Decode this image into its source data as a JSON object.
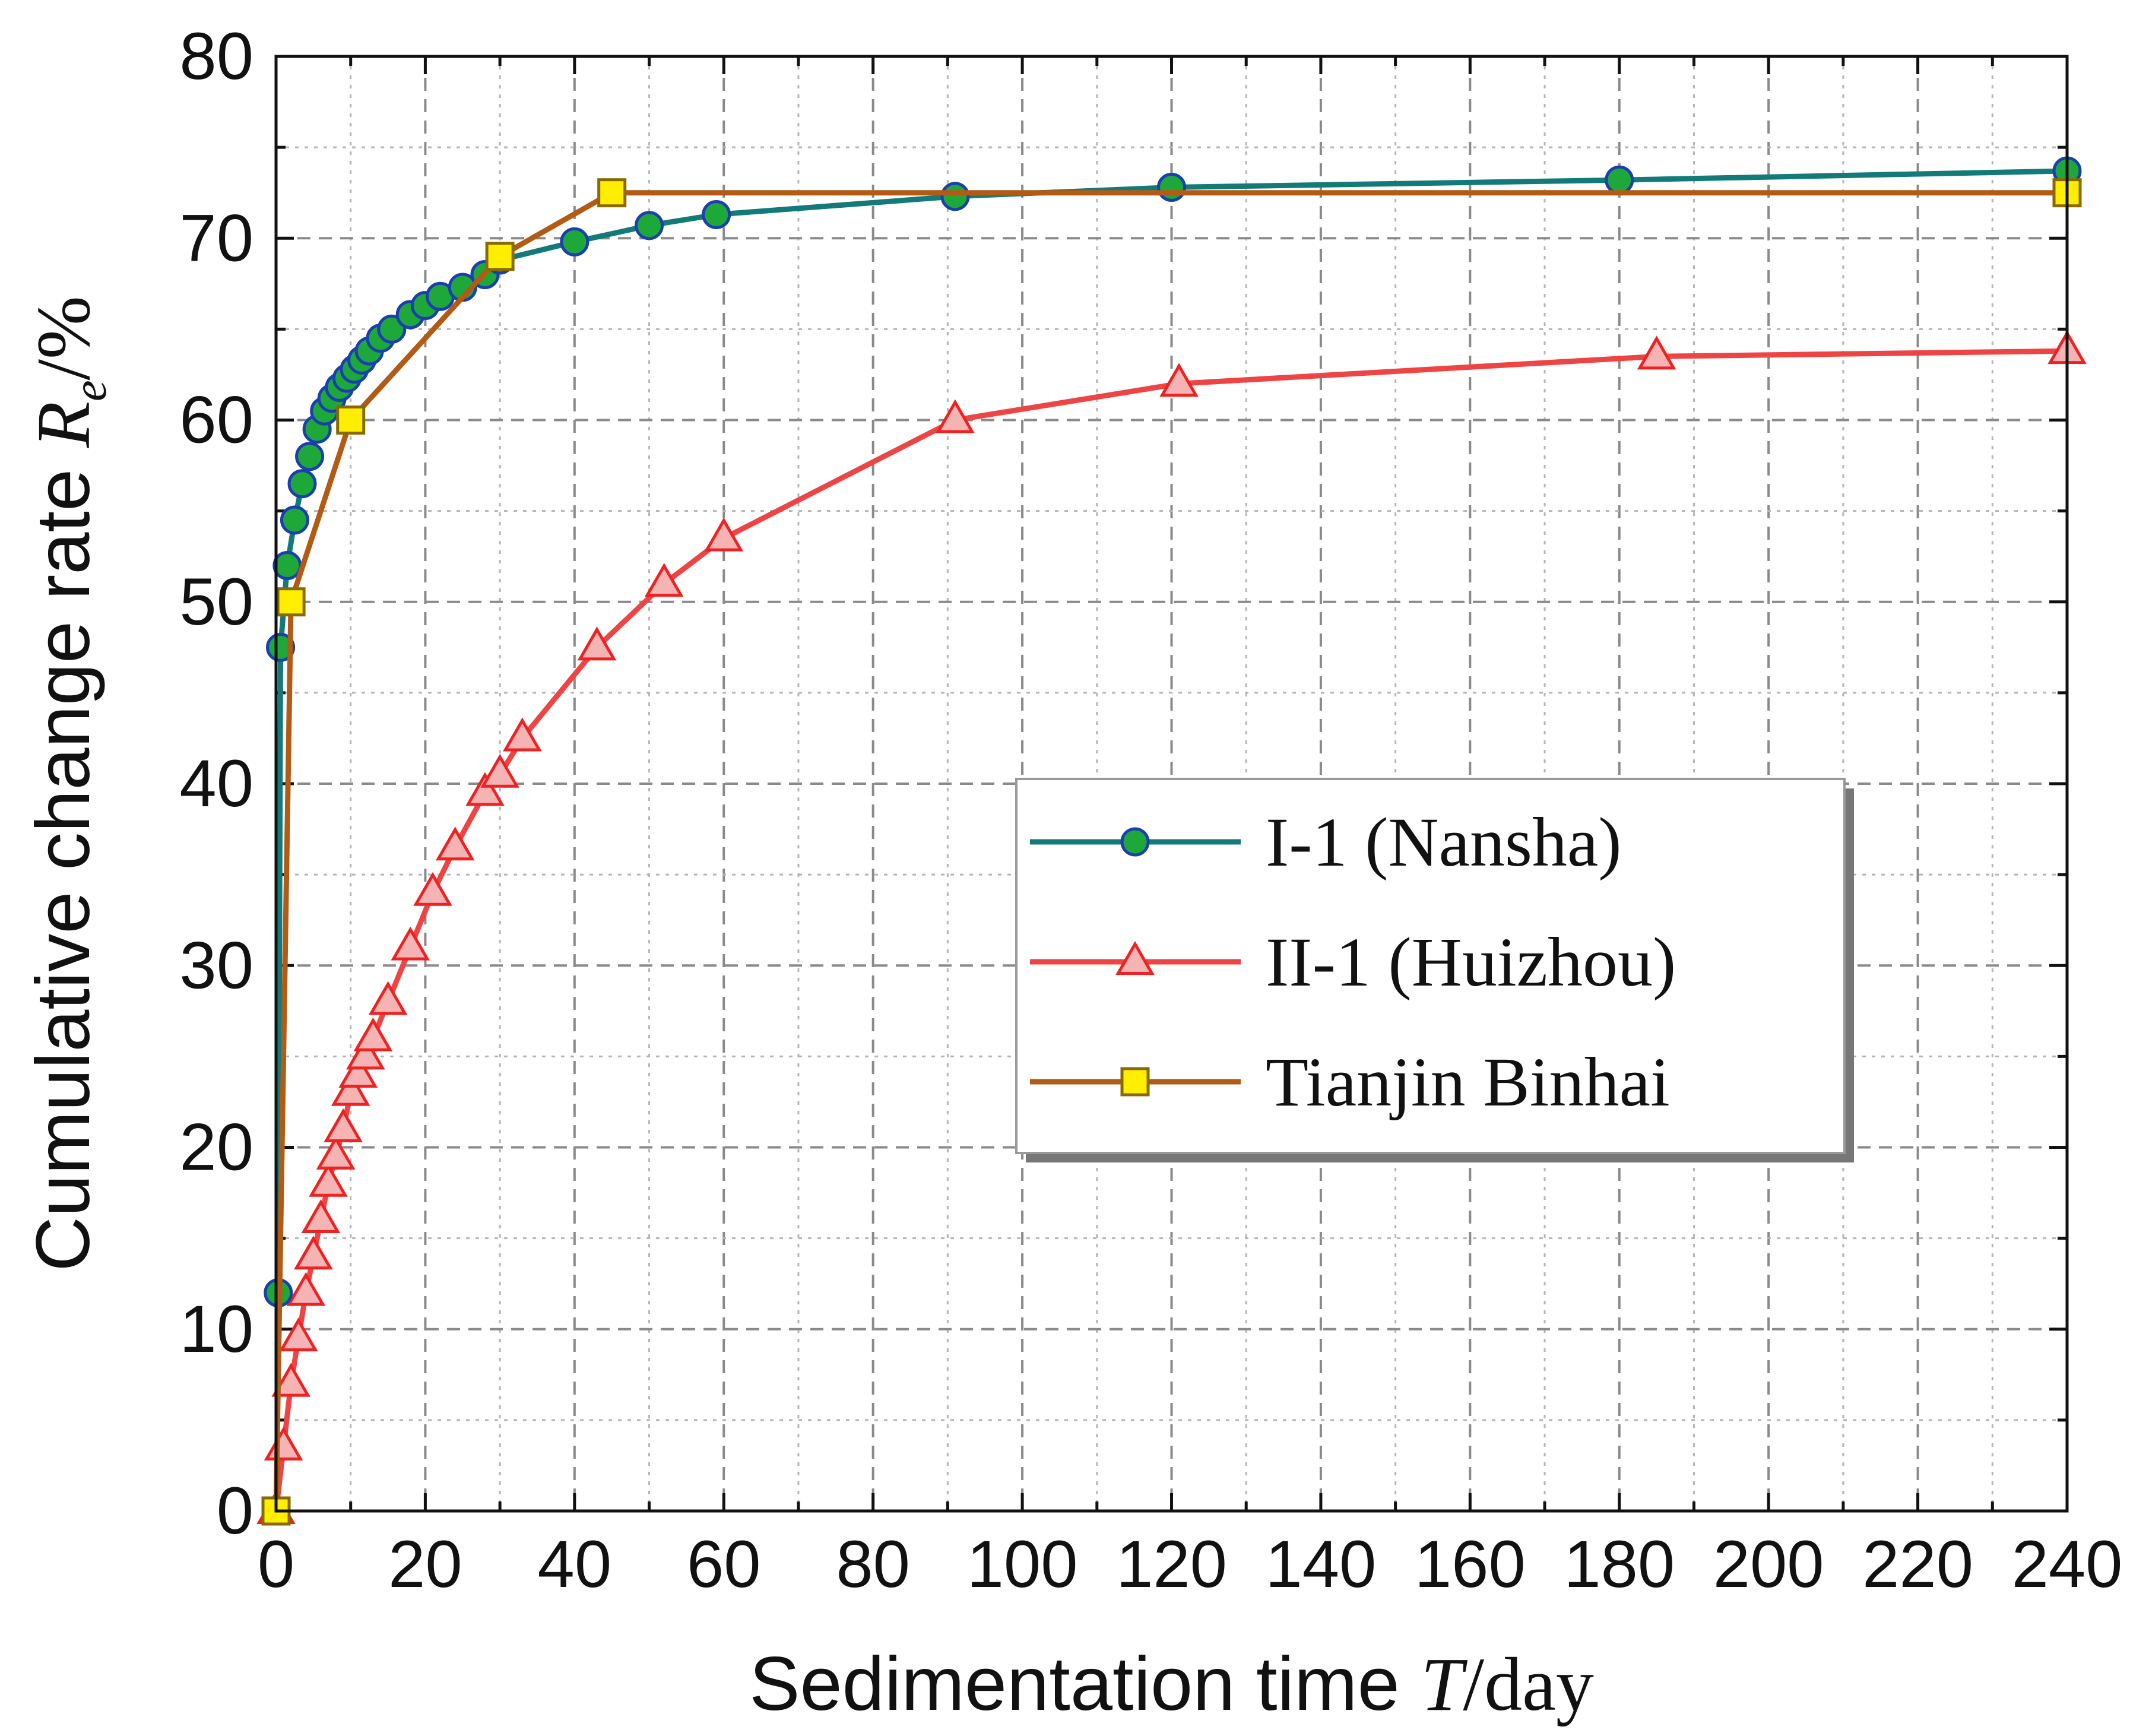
{
  "chart_data": {
    "type": "line",
    "xlabel": "Sedimentation time T/day",
    "ylabel": "Cumulative change rate Re/%",
    "xlabel_parts": {
      "text": "Sedimentation time ",
      "var": "T",
      "unit": "/day"
    },
    "ylabel_parts": {
      "text": "Cumulative change rate ",
      "var": "R",
      "sub": "e",
      "unit": "/%"
    },
    "xlim": [
      0,
      240
    ],
    "ylim": [
      0,
      80
    ],
    "xticks": [
      "0",
      "20",
      "40",
      "60",
      "80",
      "100",
      "120",
      "140",
      "160",
      "180",
      "200",
      "220",
      "240"
    ],
    "yticks": [
      "0",
      "10",
      "20",
      "30",
      "40",
      "50",
      "60",
      "70",
      "80"
    ],
    "grid": true,
    "legend_position": "center-right",
    "series": [
      {
        "name": "I-1 (Nansha)",
        "color": "#137a7a",
        "marker": "circle",
        "marker_fill": "#1fa83a",
        "marker_stroke": "#1a3fb0",
        "x": [
          0.3,
          0.6,
          1.5,
          2.5,
          3.5,
          4.5,
          5.5,
          6.5,
          7.5,
          8.5,
          9.5,
          10.5,
          11.5,
          12.5,
          14,
          15.5,
          18,
          20,
          22,
          25,
          28,
          30,
          40,
          50,
          59,
          91,
          120,
          180,
          240
        ],
        "y": [
          12,
          47.5,
          52,
          54.5,
          56.5,
          58,
          59.5,
          60.5,
          61.2,
          61.8,
          62.3,
          62.8,
          63.3,
          63.8,
          64.5,
          65,
          65.8,
          66.3,
          66.8,
          67.3,
          68,
          68.8,
          69.8,
          70.7,
          71.3,
          72.3,
          72.8,
          73.2,
          73.7
        ]
      },
      {
        "name": "II-1 (Huizhou)",
        "color": "#ee4444",
        "marker": "triangle",
        "marker_fill": "#f6b3b3",
        "marker_stroke": "#ee2222",
        "x": [
          0,
          1,
          2,
          3,
          4,
          5,
          6,
          7,
          8,
          9,
          10,
          11,
          12,
          13,
          15,
          18,
          21,
          24,
          28,
          30,
          33,
          43,
          52,
          60,
          91,
          121,
          185,
          240
        ],
        "y": [
          0,
          3.5,
          7,
          9.5,
          12,
          14,
          16,
          18,
          19.5,
          21,
          23,
          24,
          25,
          26,
          28,
          31,
          34,
          36.5,
          39.5,
          40.5,
          42.5,
          47.5,
          51,
          53.5,
          60,
          62,
          63.5,
          63.8
        ]
      },
      {
        "name": "Tianjin Binhai",
        "color": "#b35a14",
        "marker": "square",
        "marker_fill": "#ffee00",
        "marker_stroke": "#8a6a00",
        "x": [
          0,
          2,
          10,
          30,
          45,
          240
        ],
        "y": [
          0,
          50,
          60,
          69,
          72.5,
          72.5
        ]
      }
    ]
  }
}
